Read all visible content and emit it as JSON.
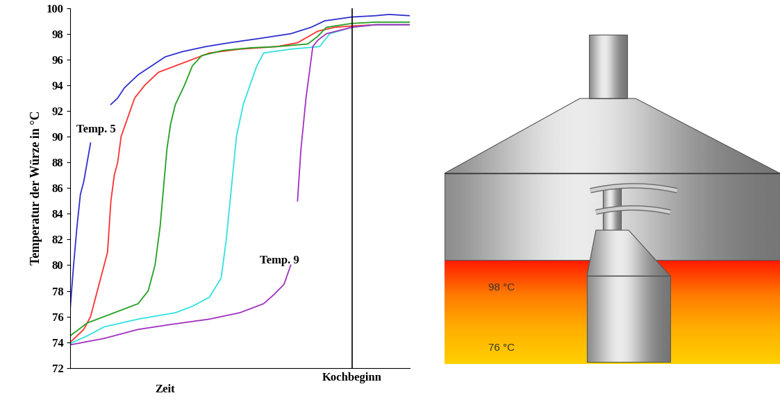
{
  "chart_data": {
    "type": "line",
    "y_label": "Temperatur der Würze in °C",
    "x_label": "Zeit",
    "xlim": [
      0,
      100
    ],
    "xticks": [],
    "ylim": [
      72,
      100
    ],
    "yticks": [
      72,
      74,
      76,
      78,
      80,
      82,
      84,
      86,
      88,
      90,
      92,
      94,
      96,
      98,
      100
    ],
    "tick_labels": "y",
    "grid": false,
    "annotations": [
      {
        "text": "Kochbeginn",
        "x": 83
      }
    ],
    "series": [
      {
        "name": "Temp. 5",
        "color": "#2f2fd0",
        "x": [
          0,
          1,
          2,
          3,
          4,
          6,
          7,
          12,
          14,
          16,
          20,
          24,
          28,
          33,
          40,
          47,
          55,
          65,
          71,
          75,
          83,
          90,
          94,
          100
        ],
        "values": [
          76.6,
          80,
          83,
          85.5,
          86.5,
          89.5,
          null,
          92.5,
          93,
          93.8,
          94.8,
          95.5,
          96.2,
          96.6,
          97,
          97.3,
          97.6,
          98,
          98.5,
          99,
          99.3,
          99.4,
          99.5,
          99.4
        ]
      },
      {
        "color": "#ff3030",
        "x": [
          0,
          2,
          4,
          6,
          8,
          10,
          11,
          12,
          13,
          14,
          15,
          17,
          19,
          22,
          26,
          31,
          36,
          41,
          50,
          61,
          67,
          73,
          78,
          83,
          90,
          100
        ],
        "values": [
          74,
          74.5,
          75,
          76,
          78,
          80,
          81,
          85,
          87,
          88,
          90,
          91.5,
          93,
          94,
          95,
          95.5,
          96,
          96.5,
          96.8,
          97,
          97.3,
          98.2,
          98.5,
          98.6,
          98.7,
          98.7
        ]
      },
      {
        "color": "#22a022",
        "x": [
          0,
          5,
          10,
          15,
          20,
          23,
          25,
          26.5,
          27.5,
          28.5,
          29.6,
          31,
          33.7,
          36,
          38.8,
          45,
          53,
          61,
          70,
          73,
          75.5,
          83,
          90,
          100
        ],
        "values": [
          74.5,
          75.5,
          76,
          76.5,
          77,
          78,
          80,
          83,
          86,
          89,
          91,
          92.5,
          94,
          95.5,
          96.3,
          96.7,
          96.9,
          97,
          97.2,
          97.8,
          98.5,
          98.8,
          98.9,
          98.9
        ]
      },
      {
        "color": "#33e0e0",
        "x": [
          0,
          5,
          10,
          20,
          31,
          36,
          41,
          44.5,
          46,
          47.5,
          49,
          51,
          53,
          55,
          57,
          65,
          73.5,
          76.5,
          83,
          90,
          100
        ],
        "values": [
          73.9,
          74.5,
          75.2,
          75.8,
          76.3,
          76.8,
          77.5,
          79,
          82,
          86,
          90,
          92.5,
          94,
          95.5,
          96.5,
          96.8,
          97,
          98,
          98.5,
          98.7,
          98.7
        ]
      },
      {
        "name": "Temp. 9",
        "color": "#a030c0",
        "x": [
          0,
          10,
          20,
          30,
          41,
          50,
          57,
          60,
          63,
          65,
          66,
          67,
          68,
          69.5,
          71.5,
          73,
          75.5,
          83,
          90,
          100
        ],
        "values": [
          73.8,
          74.3,
          75,
          75.4,
          75.8,
          76.3,
          77,
          77.7,
          78.5,
          80,
          null,
          85,
          89,
          93,
          97,
          97.5,
          98,
          98.5,
          98.7,
          98.7
        ]
      }
    ]
  },
  "diagram": {
    "liquid_labels": [
      "98 °C",
      "76 °C"
    ]
  }
}
